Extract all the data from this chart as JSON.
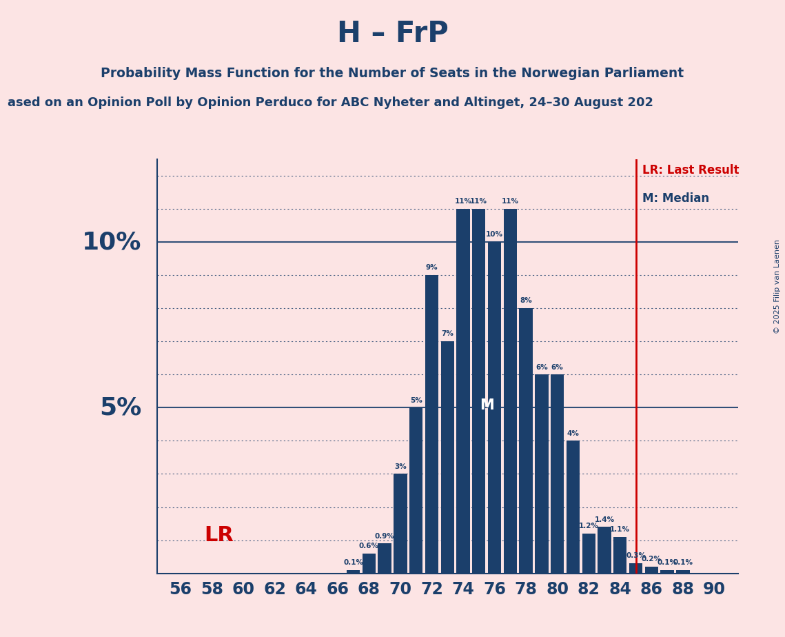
{
  "title": "H – FrP",
  "subtitle": "Probability Mass Function for the Number of Seats in the Norwegian Parliament",
  "subtitle2": "ased on an Opinion Poll by Opinion Perduco for ABC Nyheter and Altinget, 24–30 August 202",
  "copyright": "© 2025 Filip van Laenen",
  "seats": [
    56,
    57,
    58,
    59,
    60,
    61,
    62,
    63,
    64,
    65,
    66,
    67,
    68,
    69,
    70,
    71,
    72,
    73,
    74,
    75,
    76,
    77,
    78,
    79,
    80,
    81,
    82,
    83,
    84,
    85,
    86,
    87,
    88,
    89,
    90
  ],
  "probabilities": [
    0.0,
    0.0,
    0.0,
    0.0,
    0.0,
    0.0,
    0.0,
    0.0,
    0.0,
    0.0,
    0.0,
    0.1,
    0.6,
    0.9,
    3.0,
    5.0,
    9.0,
    7.0,
    11.0,
    11.0,
    10.0,
    11.0,
    8.0,
    6.0,
    6.0,
    4.0,
    1.2,
    1.4,
    1.1,
    0.3,
    0.2,
    0.1,
    0.1,
    0.0,
    0.0
  ],
  "bar_color": "#1b3f6b",
  "background_color": "#fce4e4",
  "lr_seat": 85,
  "median_seat": 75,
  "lr_color": "#cc0000",
  "text_color": "#1b3f6b",
  "ylim": [
    0,
    12.5
  ],
  "grid_color": "#1b3f6b"
}
